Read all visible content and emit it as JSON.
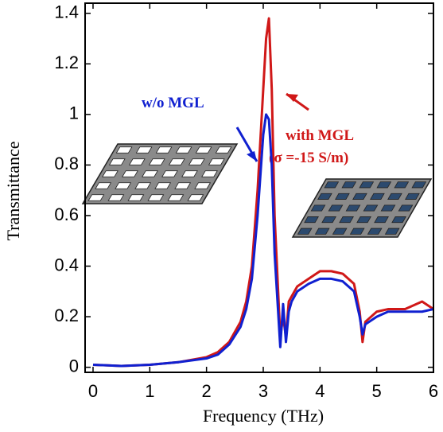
{
  "chart_data": {
    "type": "line",
    "xlabel": "Frequency (THz)",
    "ylabel": "Transmittance",
    "annotation": "(σ =-15 S/m)",
    "x": [
      0,
      0.5,
      1,
      1.5,
      2,
      2.2,
      2.4,
      2.6,
      2.7,
      2.8,
      2.9,
      3.0,
      3.05,
      3.1,
      3.15,
      3.2,
      3.3,
      3.35,
      3.4,
      3.45,
      3.5,
      3.6,
      3.8,
      4.0,
      4.2,
      4.4,
      4.6,
      4.7,
      4.75,
      4.8,
      5.0,
      5.2,
      5.5,
      5.8,
      6.0
    ],
    "series": [
      {
        "name": "with MGL",
        "color": "#d01818",
        "values": [
          0.01,
          0.005,
          0.01,
          0.02,
          0.04,
          0.06,
          0.1,
          0.18,
          0.26,
          0.4,
          0.7,
          1.1,
          1.3,
          1.38,
          1.1,
          0.6,
          0.12,
          0.2,
          0.12,
          0.26,
          0.28,
          0.32,
          0.35,
          0.38,
          0.38,
          0.37,
          0.33,
          0.22,
          0.1,
          0.18,
          0.22,
          0.23,
          0.23,
          0.26,
          0.23
        ]
      },
      {
        "name": "w/o MGL",
        "color": "#1020d0",
        "values": [
          0.01,
          0.005,
          0.01,
          0.02,
          0.035,
          0.05,
          0.09,
          0.16,
          0.23,
          0.35,
          0.6,
          0.92,
          1.0,
          0.98,
          0.8,
          0.45,
          0.08,
          0.25,
          0.1,
          0.22,
          0.26,
          0.3,
          0.33,
          0.35,
          0.35,
          0.34,
          0.3,
          0.2,
          0.13,
          0.17,
          0.2,
          0.22,
          0.22,
          0.22,
          0.23
        ]
      }
    ],
    "xlim": [
      -0.14,
      6
    ],
    "ylim": [
      -0.02,
      1.44
    ],
    "xticks": [
      0,
      1,
      2,
      3,
      4,
      5,
      6
    ],
    "yticks": [
      0,
      0.2,
      0.4,
      0.6,
      0.8,
      1,
      1.2,
      1.4
    ]
  }
}
